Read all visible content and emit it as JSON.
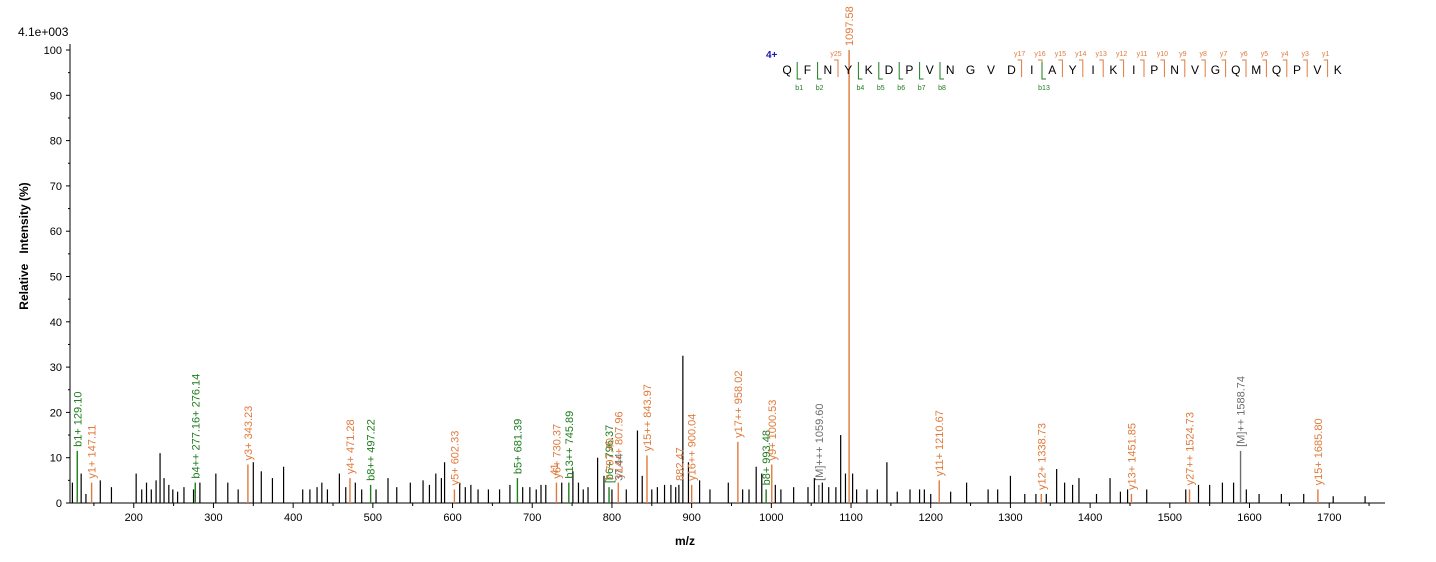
{
  "chart_data": {
    "type": "bar",
    "scale_label": "4.1e+003",
    "xlabel": "m/z",
    "ylabel": "Relative   Intensity (%)",
    "xlim": [
      120,
      1770
    ],
    "ylim": [
      0,
      100
    ],
    "x_ticks": [
      "200",
      "300",
      "400",
      "500",
      "600",
      "700",
      "800",
      "900",
      "1000",
      "1100",
      "1200",
      "1300",
      "1400",
      "1500",
      "1600",
      "1700"
    ],
    "y_ticks": [
      "0",
      "10",
      "20",
      "30",
      "40",
      "50",
      "60",
      "70",
      "80",
      "90",
      "100"
    ],
    "colors": {
      "b": "#1e7d1e",
      "y": "#e07a3c",
      "precursor": "#6e6e6e",
      "unassigned": "#000000",
      "charge": "#1a1aa8"
    },
    "annotated_peaks": [
      {
        "x": 129.1,
        "y": 11.5,
        "label": "b1+ 129.10",
        "type": "b"
      },
      {
        "x": 147.11,
        "y": 4.5,
        "label": "y1+ 147.11",
        "type": "y"
      },
      {
        "x": 277.16,
        "y": 4.5,
        "label": "b4++ 277.16+ 276.14",
        "type": "b"
      },
      {
        "x": 343.23,
        "y": 8.5,
        "label": "y3+ 343.23",
        "type": "y"
      },
      {
        "x": 471.28,
        "y": 5.5,
        "label": "y4+ 471.28",
        "type": "y"
      },
      {
        "x": 497.22,
        "y": 4.0,
        "label": "b8++ 497.22",
        "type": "b"
      },
      {
        "x": 602.33,
        "y": 3.0,
        "label": "y5+ 602.33",
        "type": "y"
      },
      {
        "x": 681.39,
        "y": 5.5,
        "label": "b5+ 681.39",
        "type": "b"
      },
      {
        "x": 730.37,
        "y": 4.5,
        "label": "y6+ 730.37",
        "type": "y"
      },
      {
        "x": 745.89,
        "y": 4.5,
        "label": "b13++ 745.89",
        "type": "b"
      },
      {
        "x": 796.37,
        "y": 3.5,
        "label": "[b6+ 796.37",
        "type": "b"
      },
      {
        "x": 807.96,
        "y": 4.5,
        "label": "y14++ 807.96",
        "type": "y"
      },
      {
        "x": 843.97,
        "y": 10.5,
        "label": "y15++ 843.97",
        "type": "y"
      },
      {
        "x": 900.04,
        "y": 4.0,
        "label": "y16++ 900.04",
        "type": "y"
      },
      {
        "x": 958.02,
        "y": 13.5,
        "label": "y17++ 958.02",
        "type": "y"
      },
      {
        "x": 993.48,
        "y": 3.0,
        "label": "b8+ 993.48",
        "type": "b"
      },
      {
        "x": 1000.53,
        "y": 8.5,
        "label": "y9+ 1000.53",
        "type": "y"
      },
      {
        "x": 1059.6,
        "y": 4.0,
        "label": "[M]+++ 1059.60",
        "type": "precursor"
      },
      {
        "x": 1097.58,
        "y": 100,
        "label": "1097.58",
        "type": "y"
      },
      {
        "x": 1210.67,
        "y": 5.0,
        "label": "y11+ 1210.67",
        "type": "y"
      },
      {
        "x": 1338.73,
        "y": 2.0,
        "label": "y12+ 1338.73",
        "type": "y"
      },
      {
        "x": 1451.85,
        "y": 2.0,
        "label": "y13+ 1451.85",
        "type": "y"
      },
      {
        "x": 1524.73,
        "y": 3.0,
        "label": "y27++ 1524.73",
        "type": "y"
      },
      {
        "x": 1588.74,
        "y": 11.5,
        "label": "[M]++ 1588.74",
        "type": "precursor"
      },
      {
        "x": 1685.8,
        "y": 3.0,
        "label": "y15+ 1685.80",
        "type": "y"
      }
    ],
    "partial_labels": [
      {
        "x": 727,
        "y": 4.5,
        "label": ".41",
        "type": "y"
      },
      {
        "x": 808,
        "y": 4.0,
        "label": "37.44",
        "type": "precursor"
      },
      {
        "x": 797,
        "y": 4.0,
        "label": "7 797.40",
        "type": "y"
      },
      {
        "x": 885,
        "y": 4.0,
        "label": "882.47",
        "type": "y"
      }
    ],
    "unassigned_peaks": [
      [
        123,
        4.5
      ],
      [
        134,
        6.5
      ],
      [
        140,
        2.0
      ],
      [
        158,
        5.0
      ],
      [
        172,
        3.5
      ],
      [
        203,
        6.5
      ],
      [
        210,
        3.0
      ],
      [
        216,
        4.5
      ],
      [
        222,
        3.0
      ],
      [
        228,
        5.0
      ],
      [
        233,
        11.0
      ],
      [
        238,
        5.5
      ],
      [
        244,
        4.0
      ],
      [
        249,
        3.0
      ],
      [
        255,
        2.5
      ],
      [
        263,
        3.5
      ],
      [
        275,
        3.0
      ],
      [
        283,
        4.5
      ],
      [
        303,
        6.5
      ],
      [
        318,
        4.5
      ],
      [
        331,
        3.0
      ],
      [
        350,
        9.0
      ],
      [
        360,
        7.0
      ],
      [
        374,
        5.5
      ],
      [
        388,
        8.0
      ],
      [
        412,
        3.0
      ],
      [
        421,
        3.0
      ],
      [
        430,
        3.5
      ],
      [
        436,
        4.5
      ],
      [
        443,
        3.0
      ],
      [
        458,
        6.5
      ],
      [
        466,
        3.5
      ],
      [
        478,
        4.5
      ],
      [
        486,
        3.0
      ],
      [
        504,
        3.0
      ],
      [
        519,
        5.5
      ],
      [
        530,
        3.5
      ],
      [
        547,
        4.5
      ],
      [
        563,
        5.0
      ],
      [
        571,
        4.0
      ],
      [
        579,
        6.5
      ],
      [
        586,
        5.5
      ],
      [
        590,
        9.0
      ],
      [
        609,
        4.5
      ],
      [
        616,
        3.5
      ],
      [
        623,
        4.0
      ],
      [
        632,
        3.0
      ],
      [
        645,
        3.0
      ],
      [
        659,
        3.0
      ],
      [
        672,
        4.0
      ],
      [
        688,
        3.5
      ],
      [
        697,
        3.5
      ],
      [
        705,
        3.0
      ],
      [
        711,
        4.0
      ],
      [
        717,
        4.0
      ],
      [
        737,
        4.5
      ],
      [
        751,
        7.0
      ],
      [
        758,
        4.5
      ],
      [
        764,
        3.0
      ],
      [
        770,
        3.5
      ],
      [
        782,
        10.0
      ],
      [
        790,
        6.0
      ],
      [
        800,
        3.0
      ],
      [
        818,
        3.0
      ],
      [
        832,
        16.0
      ],
      [
        838,
        6.0
      ],
      [
        850,
        3.0
      ],
      [
        857,
        3.5
      ],
      [
        866,
        4.0
      ],
      [
        874,
        4.0
      ],
      [
        880,
        3.5
      ],
      [
        884,
        4.0
      ],
      [
        889,
        32.5
      ],
      [
        896,
        9.0
      ],
      [
        910,
        5.0
      ],
      [
        923,
        3.0
      ],
      [
        946,
        4.5
      ],
      [
        964,
        3.0
      ],
      [
        972,
        3.0
      ],
      [
        981,
        8.0
      ],
      [
        988,
        6.5
      ],
      [
        1005,
        4.0
      ],
      [
        1012,
        3.0
      ],
      [
        1028,
        3.5
      ],
      [
        1046,
        3.5
      ],
      [
        1054,
        5.5
      ],
      [
        1064,
        4.5
      ],
      [
        1072,
        3.5
      ],
      [
        1081,
        3.5
      ],
      [
        1087,
        15.0
      ],
      [
        1093,
        6.5
      ],
      [
        1102,
        6.5
      ],
      [
        1107,
        3.0
      ],
      [
        1120,
        3.0
      ],
      [
        1133,
        3.0
      ],
      [
        1145,
        9.0
      ],
      [
        1158,
        2.5
      ],
      [
        1174,
        3.0
      ],
      [
        1186,
        3.0
      ],
      [
        1192,
        3.0
      ],
      [
        1200,
        2.0
      ],
      [
        1225,
        2.5
      ],
      [
        1245,
        4.5
      ],
      [
        1272,
        3.0
      ],
      [
        1284,
        3.0
      ],
      [
        1300,
        6.0
      ],
      [
        1318,
        2.0
      ],
      [
        1332,
        2.0
      ],
      [
        1345,
        2.0
      ],
      [
        1358,
        7.5
      ],
      [
        1368,
        4.5
      ],
      [
        1378,
        4.0
      ],
      [
        1386,
        5.5
      ],
      [
        1408,
        2.0
      ],
      [
        1425,
        5.5
      ],
      [
        1438,
        2.5
      ],
      [
        1447,
        3.0
      ],
      [
        1471,
        3.0
      ],
      [
        1520,
        3.0
      ],
      [
        1536,
        4.0
      ],
      [
        1550,
        4.0
      ],
      [
        1566,
        4.5
      ],
      [
        1580,
        4.5
      ],
      [
        1596,
        3.0
      ],
      [
        1612,
        2.0
      ],
      [
        1640,
        2.0
      ],
      [
        1668,
        2.0
      ],
      [
        1705,
        1.5
      ],
      [
        1745,
        1.5
      ]
    ],
    "sequence": {
      "charge": "4+",
      "residues": [
        "Q",
        "F",
        "N",
        "Y",
        "K",
        "D",
        "P",
        "V",
        "N",
        "G",
        "V",
        "D",
        "I",
        "A",
        "Y",
        "I",
        "K",
        "I",
        "P",
        "N",
        "V",
        "G",
        "Q",
        "M",
        "Q",
        "P",
        "V",
        "K"
      ],
      "y_ions": [
        {
          "gap": 3,
          "label": "y25"
        },
        {
          "gap": 12,
          "label": "y17"
        },
        {
          "gap": 13,
          "label": "y16"
        },
        {
          "gap": 14,
          "label": "y15"
        },
        {
          "gap": 15,
          "label": "y14"
        },
        {
          "gap": 16,
          "label": "y13"
        },
        {
          "gap": 17,
          "label": "y12"
        },
        {
          "gap": 18,
          "label": "y11"
        },
        {
          "gap": 19,
          "label": "y10"
        },
        {
          "gap": 20,
          "label": "y9"
        },
        {
          "gap": 21,
          "label": "y8"
        },
        {
          "gap": 22,
          "label": "y7"
        },
        {
          "gap": 23,
          "label": "y6"
        },
        {
          "gap": 24,
          "label": "y5"
        },
        {
          "gap": 25,
          "label": "y4"
        },
        {
          "gap": 26,
          "label": "y3"
        },
        {
          "gap": 27,
          "label": "y1"
        }
      ],
      "b_ions": [
        {
          "gap": 1,
          "label": "b1"
        },
        {
          "gap": 2,
          "label": "b2"
        },
        {
          "gap": 4,
          "label": "b4"
        },
        {
          "gap": 5,
          "label": "b5"
        },
        {
          "gap": 6,
          "label": "b6"
        },
        {
          "gap": 7,
          "label": "b7"
        },
        {
          "gap": 8,
          "label": "b8"
        },
        {
          "gap": 13,
          "label": "b13"
        }
      ]
    }
  }
}
